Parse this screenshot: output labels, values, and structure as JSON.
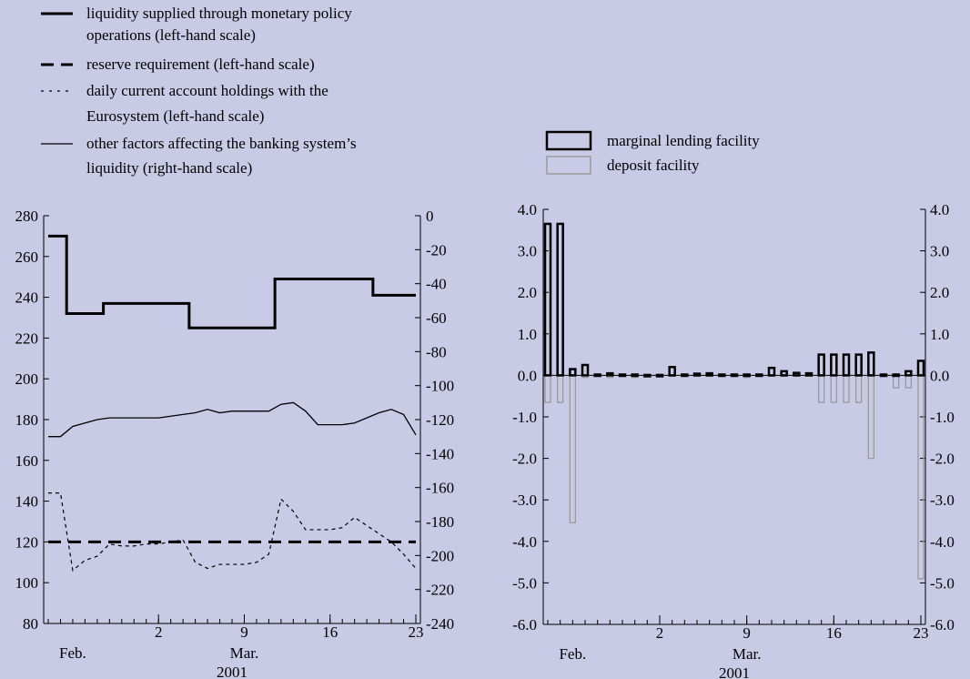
{
  "legend_left": [
    {
      "lines": [
        "liquidity supplied through monetary policy",
        "operations (left-hand scale)"
      ],
      "style": "thick"
    },
    {
      "lines": [
        "reserve requirement (left-hand scale)"
      ],
      "style": "dashed"
    },
    {
      "lines": [
        "daily current account holdings with the",
        "Eurosystem (left-hand scale)"
      ],
      "style": "dotted"
    },
    {
      "lines": [
        "other factors affecting the banking system’s",
        "liquidity (right-hand scale)"
      ],
      "style": "thin"
    }
  ],
  "legend_right": [
    {
      "label": "marginal lending facility",
      "style": "black-bar"
    },
    {
      "label": "deposit facility",
      "style": "grey-bar"
    }
  ],
  "colors": {
    "background": "#c8cae6",
    "deposit": "#9a9a9a",
    "lending": "#000000"
  },
  "chart_data": [
    {
      "type": "line",
      "x": [
        -7,
        -6,
        -5,
        -4,
        -3,
        -2,
        -1,
        0,
        1,
        2,
        3,
        4,
        5,
        6,
        7,
        8,
        9,
        10,
        11,
        12,
        13,
        14,
        15,
        16,
        17,
        18,
        19,
        20,
        21,
        22,
        23
      ],
      "y_left_ticks": [
        "80",
        "100",
        "120",
        "140",
        "160",
        "180",
        "200",
        "220",
        "240",
        "260",
        "280"
      ],
      "y_left_range": [
        80,
        280
      ],
      "y_right_ticks": [
        "-240",
        "-220",
        "-200",
        "-180",
        "-160",
        "-140",
        "-120",
        "-100",
        "-80",
        "-60",
        "-40",
        "-20",
        "0"
      ],
      "y_right_range": [
        -240,
        0
      ],
      "x_ticks": [
        {
          "x": 2,
          "label": "2"
        },
        {
          "x": 9,
          "label": "9"
        },
        {
          "x": 16,
          "label": "16"
        },
        {
          "x": 23,
          "label": "23"
        }
      ],
      "month_labels": [
        {
          "x": -5,
          "label": "Feb."
        },
        {
          "x": 9,
          "label": "Mar."
        }
      ],
      "year_label": "2001",
      "series": [
        {
          "axis": "left",
          "style": "thick",
          "values": [
            270,
            270,
            232,
            232,
            232,
            237,
            237,
            237,
            237,
            237,
            237,
            237,
            225,
            225,
            225,
            225,
            225,
            225,
            225,
            249,
            249,
            249,
            249,
            249,
            249,
            249,
            249,
            241,
            241,
            241,
            241
          ]
        },
        {
          "axis": "left",
          "style": "dashed",
          "values": [
            120,
            120,
            120,
            120,
            120,
            120,
            120,
            120,
            120,
            120,
            120,
            120,
            120,
            120,
            120,
            120,
            120,
            120,
            120,
            120,
            120,
            120,
            120,
            120,
            120,
            120,
            120,
            120,
            120,
            120,
            120
          ]
        },
        {
          "axis": "left",
          "style": "dotted",
          "values": [
            144,
            144,
            106,
            111,
            113,
            119,
            118,
            118,
            119,
            119,
            120,
            121,
            110,
            107,
            109,
            109,
            109,
            110,
            114,
            141,
            135,
            126,
            126,
            126,
            127,
            132,
            128,
            124,
            120,
            114,
            107
          ]
        },
        {
          "axis": "right",
          "style": "thin",
          "values": [
            -130,
            -130,
            -124,
            -122,
            -120,
            -119,
            -119,
            -119,
            -119,
            -119,
            -118,
            -117,
            -116,
            -114,
            -116,
            -115,
            -115,
            -115,
            -115,
            -111,
            -110,
            -115,
            -123,
            -123,
            -123,
            -122,
            -119,
            -116,
            -114,
            -117,
            -129
          ]
        }
      ]
    },
    {
      "type": "bar",
      "x": [
        -7,
        -6,
        -5,
        -4,
        -3,
        -2,
        -1,
        0,
        1,
        2,
        3,
        4,
        5,
        6,
        7,
        8,
        9,
        10,
        11,
        12,
        13,
        14,
        15,
        16,
        17,
        18,
        19,
        20,
        21,
        22,
        23
      ],
      "y_range": [
        -6.0,
        4.0
      ],
      "y_ticks": [
        "-6.0",
        "-5.0",
        "-4.0",
        "-3.0",
        "-2.0",
        "-1.0",
        "0.0",
        "1.0",
        "2.0",
        "3.0",
        "4.0"
      ],
      "x_ticks": [
        {
          "x": 2,
          "label": "2"
        },
        {
          "x": 9,
          "label": "9"
        },
        {
          "x": 16,
          "label": "16"
        },
        {
          "x": 23,
          "label": "23"
        }
      ],
      "month_labels": [
        {
          "x": -5,
          "label": "Feb."
        },
        {
          "x": 9,
          "label": "Mar."
        }
      ],
      "year_label": "2001",
      "series": [
        {
          "style": "lending",
          "values": [
            3.65,
            3.65,
            0.15,
            0.25,
            0.02,
            0.05,
            0.02,
            0.02,
            0.01,
            0.01,
            0.2,
            0.02,
            0.04,
            0.05,
            0.02,
            0.02,
            0.02,
            0.02,
            0.18,
            0.1,
            0.06,
            0.05,
            0.5,
            0.5,
            0.5,
            0.5,
            0.55,
            0.02,
            0.02,
            0.1,
            0.35
          ]
        },
        {
          "style": "deposit",
          "values": [
            -0.65,
            -0.65,
            -3.55,
            -0.05,
            -0.02,
            -0.05,
            -0.02,
            -0.05,
            -0.02,
            -0.02,
            -0.02,
            -0.02,
            -0.02,
            -0.02,
            -0.02,
            -0.02,
            -0.05,
            -0.02,
            -0.02,
            -0.02,
            -0.02,
            -0.02,
            -0.65,
            -0.65,
            -0.65,
            -0.65,
            -2.0,
            -0.02,
            -0.3,
            -0.3,
            -4.9
          ]
        }
      ]
    }
  ]
}
